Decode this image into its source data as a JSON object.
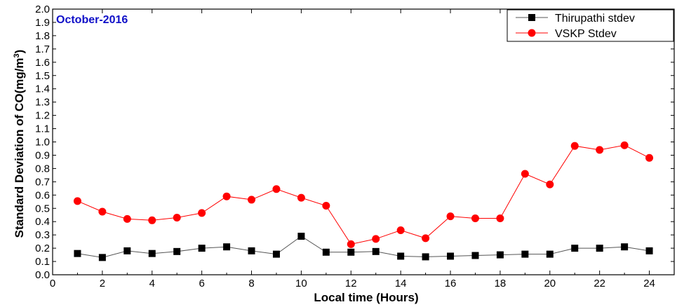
{
  "chart_data": {
    "type": "line",
    "title": "October-2016",
    "title_color": "#1010c8",
    "xlabel": "Local time (Hours)",
    "ylabel_main": "Standard Deviation of CO(mg/m",
    "ylabel_superscript": "3",
    "ylabel_close": ")",
    "xlim": [
      0,
      25
    ],
    "ylim": [
      0.0,
      2.0
    ],
    "x_ticks": [
      "0",
      "2",
      "4",
      "6",
      "8",
      "10",
      "12",
      "14",
      "16",
      "18",
      "20",
      "22",
      "24"
    ],
    "y_ticks": [
      "0.0",
      "0.1",
      "0.2",
      "0.3",
      "0.4",
      "0.5",
      "0.6",
      "0.7",
      "0.8",
      "0.9",
      "1.0",
      "1.1",
      "1.2",
      "1.3",
      "1.4",
      "1.5",
      "1.6",
      "1.7",
      "1.8",
      "1.9",
      "2.0"
    ],
    "grid": false,
    "legend_position": "top-right",
    "x": [
      1,
      2,
      3,
      4,
      5,
      6,
      7,
      8,
      9,
      10,
      11,
      12,
      13,
      14,
      15,
      16,
      17,
      18,
      19,
      20,
      21,
      22,
      23,
      24
    ],
    "series": [
      {
        "name": "Thirupathi stdev",
        "color": "#000000",
        "line_color": "#555555",
        "marker": "square",
        "values": [
          0.16,
          0.13,
          0.18,
          0.16,
          0.175,
          0.2,
          0.21,
          0.18,
          0.155,
          0.29,
          0.17,
          0.17,
          0.175,
          0.14,
          0.135,
          0.14,
          0.145,
          0.15,
          0.155,
          0.155,
          0.2,
          0.2,
          0.21,
          0.18
        ]
      },
      {
        "name": "VSKP Stdev",
        "color": "#ff0000",
        "line_color": "#ff0000",
        "marker": "circle",
        "values": [
          0.555,
          0.475,
          0.42,
          0.41,
          0.43,
          0.465,
          0.59,
          0.565,
          0.645,
          0.58,
          0.52,
          0.23,
          0.27,
          0.335,
          0.275,
          0.44,
          0.425,
          0.425,
          0.76,
          0.68,
          0.97,
          0.94,
          0.975,
          0.88
        ]
      }
    ]
  }
}
